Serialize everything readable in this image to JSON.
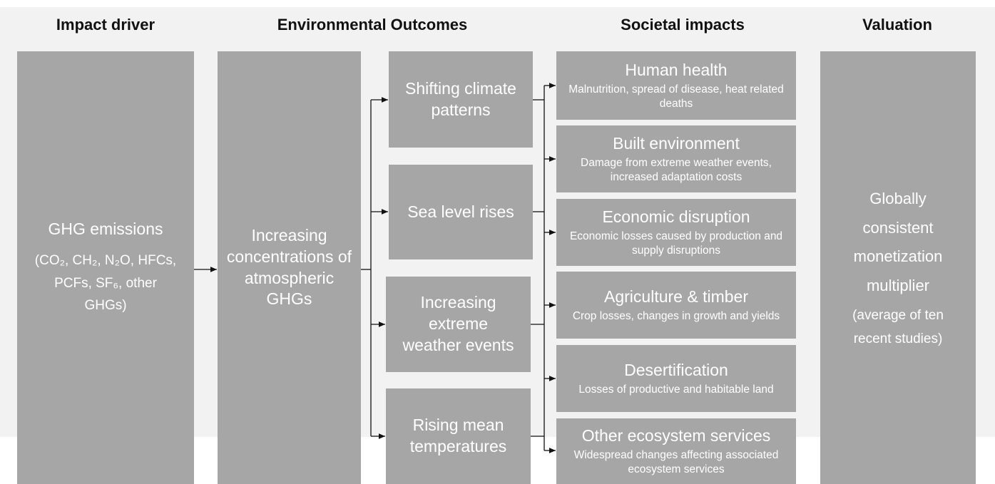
{
  "headers": [
    "Impact driver",
    "Environmental Outcomes",
    "Societal impacts",
    "Valuation"
  ],
  "driver": {
    "title": "GHG emissions",
    "detail": "(CO₂, CH₂, N₂O, HFCs, PCFs, SF₆, other GHGs)"
  },
  "concentration": "Increasing concentrations of atmospheric GHGs",
  "outcomes": [
    "Shifting climate patterns",
    "Sea level rises",
    "Increasing extreme weather events",
    "Rising mean temperatures"
  ],
  "impacts": [
    {
      "title": "Human health",
      "detail": "Malnutrition, spread of disease, heat related deaths"
    },
    {
      "title": "Built environment",
      "detail": "Damage from extreme weather events, increased adaptation costs"
    },
    {
      "title": "Economic disruption",
      "detail": "Economic losses caused by production and supply disruptions"
    },
    {
      "title": "Agriculture & timber",
      "detail": "Crop losses, changes in growth and yields"
    },
    {
      "title": "Desertification",
      "detail": "Losses of productive and habitable land"
    },
    {
      "title": "Other ecosystem services",
      "detail": "Widespread changes affecting associated ecosystem services"
    }
  ],
  "valuation": {
    "title": "Globally consistent monetization multiplier",
    "detail": "(average of ten recent studies)"
  }
}
